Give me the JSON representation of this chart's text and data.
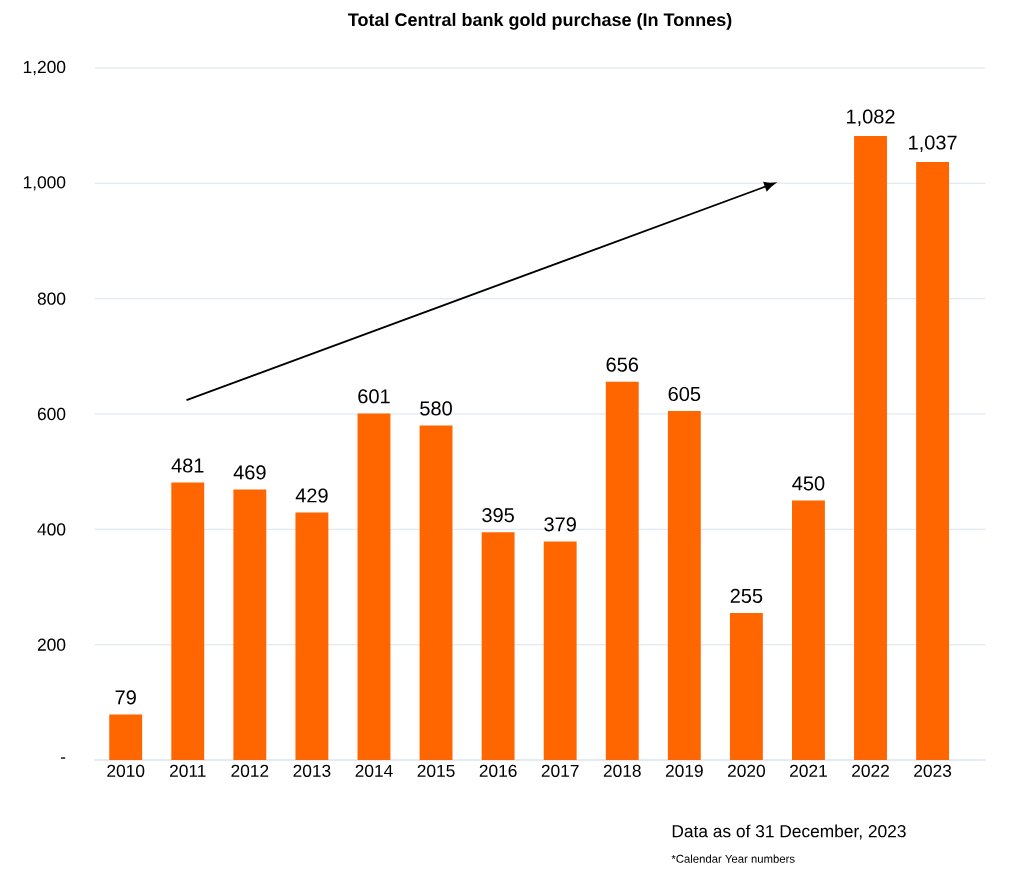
{
  "chart_data": {
    "type": "bar",
    "title": "Total Central bank gold purchase (In Tonnes)",
    "categories": [
      "2010",
      "2011",
      "2012",
      "2013",
      "2014",
      "2015",
      "2016",
      "2017",
      "2018",
      "2019",
      "2020",
      "2021",
      "2022",
      "2023"
    ],
    "values": [
      79,
      481,
      469,
      429,
      601,
      580,
      395,
      379,
      656,
      605,
      255,
      450,
      1082,
      1037
    ],
    "value_labels": [
      "79",
      "481",
      "469",
      "429",
      "601",
      "580",
      "395",
      "379",
      "656",
      "605",
      "255",
      "450",
      "1,082",
      "1,037"
    ],
    "color": "#ff6600",
    "ylim": [
      0,
      1200
    ],
    "yticks": [
      {
        "value": 0,
        "label": "-"
      },
      200,
      400,
      600,
      800,
      {
        "value": 1000,
        "label": "1,000"
      },
      {
        "value": 1200,
        "label": "1,200"
      }
    ],
    "grid": "y",
    "annotations": [
      "Data as of 31 December, 2023",
      "*Calendar Year numbers"
    ]
  }
}
